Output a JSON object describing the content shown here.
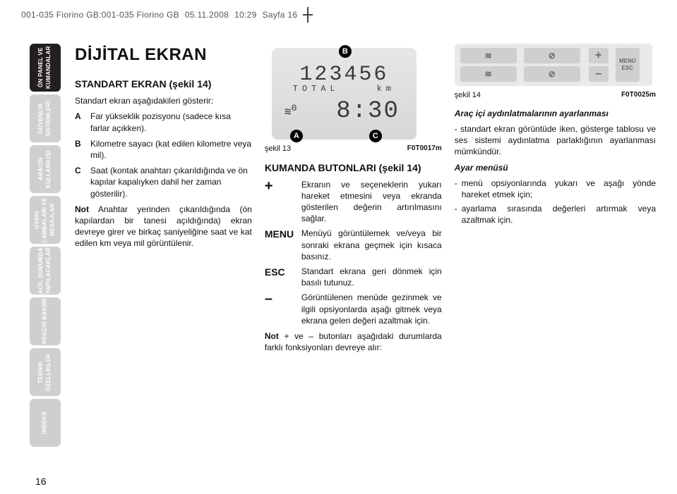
{
  "header": {
    "file": "001-035 Fiorino GB:001-035 Fiorino GB",
    "date": "05.11.2008",
    "time": "10:29",
    "page": "Sayfa 16"
  },
  "tabs": [
    "ÖN PANEL VE\nKUMANDALAR",
    "GÜVENLİK\nSİSTEMLERİ",
    "ARACIN\nKULLANILIŞI",
    "UYARI\nLAMBALARI VE\nMESAJLAR",
    "ACİL DURUMDA\nYAPILACAKLAR",
    "ARACIN BAKIMI",
    "TEKNİK\nÖZELLİKLER",
    "İNDEKS"
  ],
  "active_tab_index": 0,
  "colors": {
    "active": "#231f20",
    "mute": "#cfcfcf",
    "display_bg": "#dedede"
  },
  "col1": {
    "title": "DİJİTAL EKRAN",
    "subtitle": "STANDART EKRAN (şekil 14)",
    "lead": "Standart ekran aşağıdakileri gösterir:",
    "items": [
      {
        "lbl": "A",
        "txt": "Far yükseklik pozisyonu (sadece kısa farlar açıkken)."
      },
      {
        "lbl": "B",
        "txt": "Kilometre sayacı (kat edilen kilometre veya mil)."
      },
      {
        "lbl": "C",
        "txt": "Saat (kontak anahtarı çıkarıldığında ve ön kapılar kapalıyken dahil her zaman gösterilir)."
      }
    ],
    "note_label": "Not",
    "note": "Anahtar yerinden çıkarıldığında (ön kapılardan bir tanesi açıldığında) ekran devreye girer ve birkaç saniyeliğine saat ve kat edilen km veya mil görüntülenir."
  },
  "display": {
    "odometer": "123456",
    "total_label": "TOTAL",
    "km_label": "km",
    "headlamp_glyph": "≋",
    "headlamp_level": "0",
    "clock": "8:30",
    "markers": {
      "A": "A",
      "B": "B",
      "C": "C"
    }
  },
  "fig13": {
    "label": "şekil 13",
    "code": "F0T0017m"
  },
  "col2": {
    "heading": "KUMANDA BUTONLARI (şekil 14)",
    "rows": [
      {
        "sym": "+",
        "big": true,
        "txt": "Ekranın ve seçeneklerin yukarı hareket etmesini veya ekranda gösterilen değerin artırılmasını sağlar."
      },
      {
        "sym": "MENU",
        "txt": "Menüyü görüntülemek ve/veya bir sonraki ekrana geçmek için kısaca basınız."
      },
      {
        "sym": "ESC",
        "txt": "Standart ekrana geri dönmek için basılı tutunuz."
      },
      {
        "sym": "–",
        "big": true,
        "txt": "Görüntülenen menüde gezinmek ve ilgili opsiyonlarda aşağı gitmek veya ekrana gelen değeri azaltmak için."
      }
    ],
    "footer_note_label": "Not",
    "footer_note": "+ ve – butonları aşağıdaki durumlarda farklı fonksiyonları devreye alır:"
  },
  "panel14": {
    "plus": "+",
    "minus": "–",
    "menu_label": "MENU\nESC",
    "icons": [
      "≋",
      "⊘",
      "≋",
      "⊘"
    ]
  },
  "fig14": {
    "label": "şekil 14",
    "code": "F0T0025m"
  },
  "col3": {
    "h1": "Araç içi aydınlatmalarının ayarlanması",
    "p1": "- standart ekran görüntüde iken, gösterge tablosu ve ses sistemi aydınlatma parlaklığının ayarlanması mümkündür.",
    "h2": "Ayar menüsü",
    "bullets": [
      "menü opsiyonlarında yukarı ve aşağı yönde hareket etmek için;",
      "ayarlama sırasında değerleri artırmak veya azaltmak için."
    ]
  },
  "page_number": "16"
}
